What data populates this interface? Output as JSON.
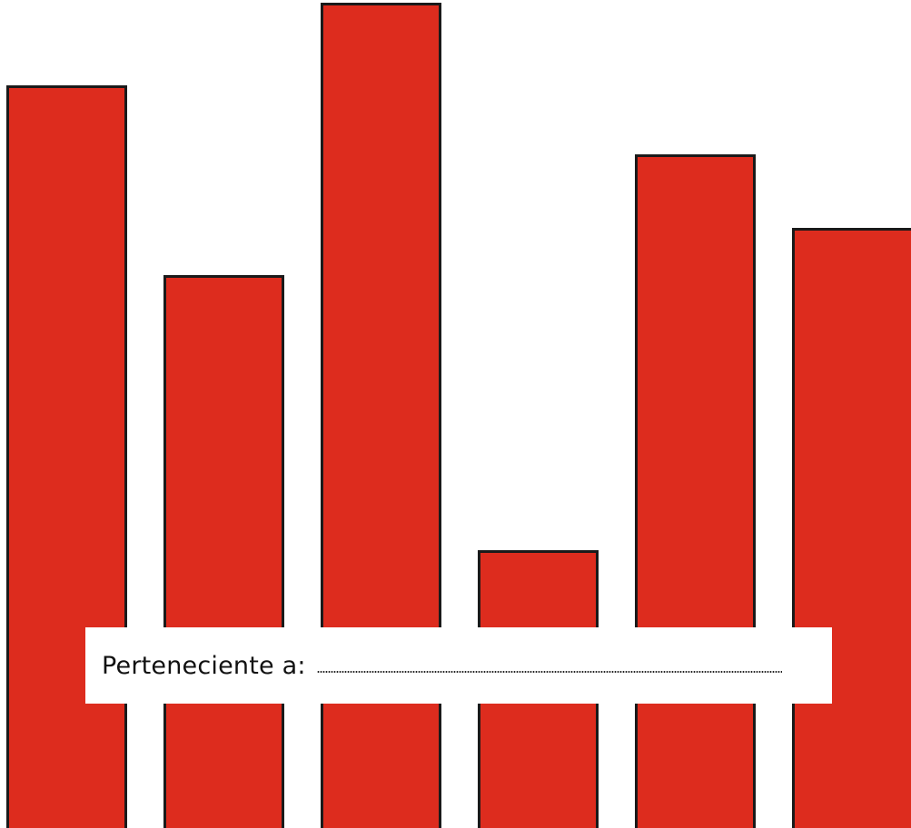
{
  "cover": {
    "owner_label": "Perteneciente a:"
  },
  "colors": {
    "bar_fill": "#dd2c1e",
    "bar_outline": "#1a1a1a",
    "background": "#ffffff"
  },
  "chart_data": {
    "type": "bar",
    "categories": [
      "",
      "",
      "",
      "",
      "",
      ""
    ],
    "values": [
      89.7,
      66.8,
      99.7,
      33.6,
      81.4,
      72.5
    ],
    "ylim": [
      0,
      100
    ],
    "grid": false,
    "legend": "none"
  }
}
